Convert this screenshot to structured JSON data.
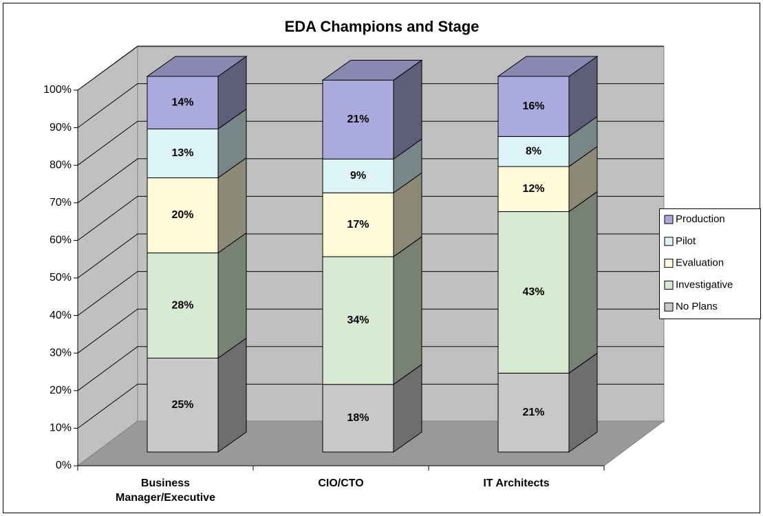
{
  "chart_data": {
    "type": "bar3d_stacked",
    "title": "EDA Champions and Stage",
    "categories": [
      "Business Manager/Executive",
      "CIO/CTO",
      "IT Architects"
    ],
    "series": [
      {
        "name": "No Plans",
        "color": "#c8c8c8",
        "values": [
          25,
          18,
          21
        ],
        "value_labels": [
          "25%",
          "18%",
          "21%"
        ]
      },
      {
        "name": "Investigative",
        "color": "#d8ead2",
        "values": [
          28,
          34,
          43
        ],
        "value_labels": [
          "28%",
          "34%",
          "43%"
        ]
      },
      {
        "name": "Evaluation",
        "color": "#fffad8",
        "values": [
          20,
          17,
          12
        ],
        "value_labels": [
          "20%",
          "17%",
          "12%"
        ]
      },
      {
        "name": "Pilot",
        "color": "#dcf4f8",
        "values": [
          13,
          9,
          8
        ],
        "value_labels": [
          "13%",
          "9%",
          "8%"
        ]
      },
      {
        "name": "Production",
        "color": "#aaaadc",
        "values": [
          14,
          21,
          16
        ],
        "value_labels": [
          "14%",
          "21%",
          "16%"
        ]
      }
    ],
    "ylim": [
      0,
      100
    ],
    "yticks": [
      {
        "value": 0,
        "label": "0%"
      },
      {
        "value": 10,
        "label": "10%"
      },
      {
        "value": 20,
        "label": "20%"
      },
      {
        "value": 30,
        "label": "30%"
      },
      {
        "value": 40,
        "label": "40%"
      },
      {
        "value": 50,
        "label": "50%"
      },
      {
        "value": 60,
        "label": "60%"
      },
      {
        "value": 70,
        "label": "70%"
      },
      {
        "value": 80,
        "label": "80%"
      },
      {
        "value": 90,
        "label": "90%"
      },
      {
        "value": 100,
        "label": "100%"
      }
    ],
    "grid": true,
    "legend": "right"
  }
}
